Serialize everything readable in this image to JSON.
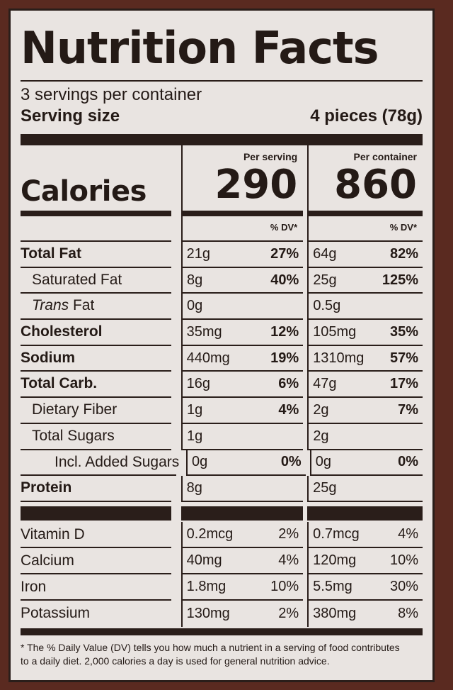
{
  "title": "Nutrition Facts",
  "servings_per_container": "3 servings per container",
  "serving_size_label": "Serving size",
  "serving_size_value": "4 pieces (78g)",
  "calories_label": "Calories",
  "columns": {
    "per_serving_label": "Per serving",
    "per_container_label": "Per container",
    "dv_label": "% DV*"
  },
  "calories": {
    "per_serving": "290",
    "per_container": "860"
  },
  "nutrients": [
    {
      "name": "Total Fat",
      "serving_amount": "21g",
      "serving_dv": "27%",
      "container_amount": "64g",
      "container_dv": "82%"
    },
    {
      "name": "Saturated Fat",
      "serving_amount": "8g",
      "serving_dv": "40%",
      "container_amount": "25g",
      "container_dv": "125%"
    },
    {
      "name_italic": "Trans",
      "name": " Fat",
      "serving_amount": "0g",
      "serving_dv": "",
      "container_amount": "0.5g",
      "container_dv": ""
    },
    {
      "name": "Cholesterol",
      "serving_amount": "35mg",
      "serving_dv": "12%",
      "container_amount": "105mg",
      "container_dv": "35%"
    },
    {
      "name": "Sodium",
      "serving_amount": "440mg",
      "serving_dv": "19%",
      "container_amount": "1310mg",
      "container_dv": "57%"
    },
    {
      "name": "Total Carb.",
      "serving_amount": "16g",
      "serving_dv": "6%",
      "container_amount": "47g",
      "container_dv": "17%"
    },
    {
      "name": "Dietary Fiber",
      "serving_amount": "1g",
      "serving_dv": "4%",
      "container_amount": "2g",
      "container_dv": "7%"
    },
    {
      "name": "Total Sugars",
      "serving_amount": "1g",
      "serving_dv": "",
      "container_amount": "2g",
      "container_dv": ""
    },
    {
      "name": "Incl. Added Sugars",
      "serving_amount": "0g",
      "serving_dv": "0%",
      "container_amount": "0g",
      "container_dv": "0%"
    },
    {
      "name": "Protein",
      "serving_amount": "8g",
      "serving_dv": "",
      "container_amount": "25g",
      "container_dv": ""
    }
  ],
  "vitamins": [
    {
      "name": "Vitamin D",
      "serving_amount": "0.2mcg",
      "serving_dv": "2%",
      "container_amount": "0.7mcg",
      "container_dv": "4%"
    },
    {
      "name": "Calcium",
      "serving_amount": "40mg",
      "serving_dv": "4%",
      "container_amount": "120mg",
      "container_dv": "10%"
    },
    {
      "name": "Iron",
      "serving_amount": "1.8mg",
      "serving_dv": "10%",
      "container_amount": "5.5mg",
      "container_dv": "30%"
    },
    {
      "name": "Potassium",
      "serving_amount": "130mg",
      "serving_dv": "2%",
      "container_amount": "380mg",
      "container_dv": "8%"
    }
  ],
  "footnote": "* The % Daily Value (DV) tells you how much a nutrient in a serving of food contributes to a daily diet. 2,000 calories a day is used for general nutrition advice."
}
